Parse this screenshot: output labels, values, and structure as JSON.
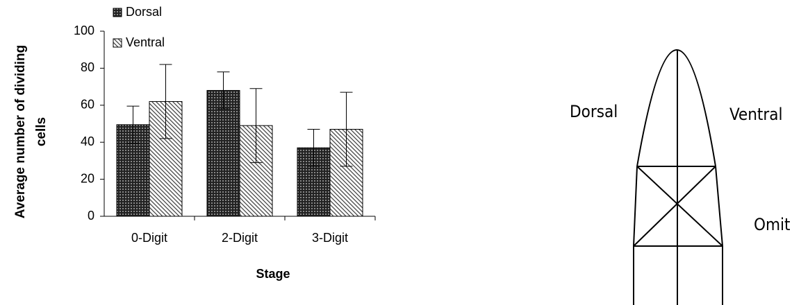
{
  "chart_data": {
    "type": "bar",
    "x_label": "Stage",
    "y_label": "Average number of dividing cells",
    "categories": [
      "0-Digit",
      "2-Digit",
      "3-Digit"
    ],
    "series": [
      {
        "name": "Dorsal",
        "color": "#333333",
        "values": [
          49.5,
          68,
          37
        ],
        "errors": [
          10,
          10,
          10
        ]
      },
      {
        "name": "Ventral",
        "color": "#999999",
        "values": [
          62,
          49,
          47
        ],
        "errors": [
          20,
          20,
          20
        ]
      }
    ],
    "ylim": [
      0,
      100
    ],
    "yticks": [
      0,
      20,
      40,
      60,
      80,
      100
    ],
    "grid": false,
    "legend": "top-left"
  },
  "diagram": {
    "labels": [
      "Dorsal",
      "Ventral",
      "Omit"
    ]
  }
}
